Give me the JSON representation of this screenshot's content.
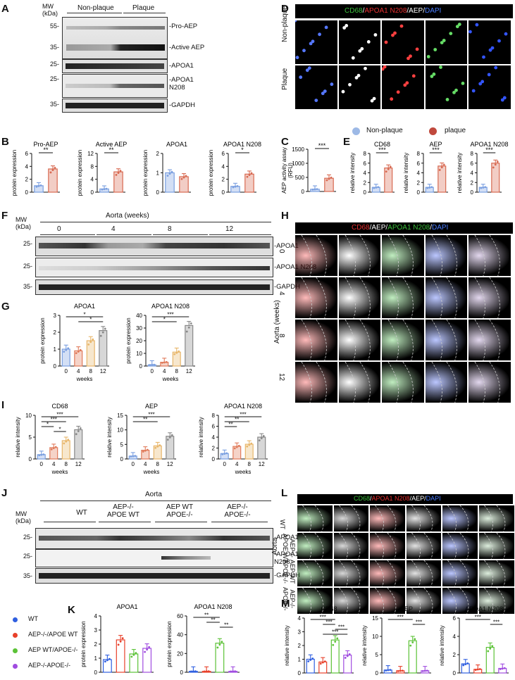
{
  "panels": {
    "A": "A",
    "B": "B",
    "C": "C",
    "D": "D",
    "E": "E",
    "F": "F",
    "G": "G",
    "H": "H",
    "I": "I",
    "J": "J",
    "K": "K",
    "L": "L",
    "M": "M"
  },
  "mw_label": "MW\n(kDa)",
  "panel_A": {
    "groups": [
      "Non-plaque",
      "Plaque"
    ],
    "mw": [
      "55-",
      "35-",
      "25-",
      "25-",
      "35-"
    ],
    "bands": [
      "-Pro-AEP",
      "-Active AEP",
      "-APOA1",
      "-APOA1\nN208",
      "-GAPDH"
    ]
  },
  "panel_D": {
    "stain": [
      {
        "text": "CD68",
        "color": "#3cbf3c"
      },
      {
        "text": "/",
        "color": "#ffffff"
      },
      {
        "text": "APOA1 N208",
        "color": "#e83030"
      },
      {
        "text": "/AEP/",
        "color": "#ffffff"
      },
      {
        "text": "DAPI",
        "color": "#4a7dff"
      }
    ],
    "rows": [
      "Non-plaque",
      "Plaque"
    ]
  },
  "panel_B": {
    "y_label": "protein expression",
    "charts": [
      {
        "title": "Pro-AEP",
        "ylim": [
          0,
          6
        ],
        "ticks": [
          "0",
          "2",
          "4",
          "6"
        ],
        "values": [
          1.0,
          3.6
        ],
        "sig": "**"
      },
      {
        "title": "Active AEP",
        "ylim": [
          0,
          12
        ],
        "ticks": [
          "0",
          "4",
          "8",
          "12"
        ],
        "values": [
          1.0,
          6.3
        ],
        "sig": "**"
      },
      {
        "title": "APOA1",
        "ylim": [
          0,
          2
        ],
        "ticks": [
          "0",
          "1",
          "2"
        ],
        "values": [
          1.0,
          0.8
        ],
        "sig": ""
      },
      {
        "title": "APOA1 N208",
        "ylim": [
          0,
          6
        ],
        "ticks": [
          "0",
          "2",
          "4",
          "6"
        ],
        "values": [
          0.9,
          2.8
        ],
        "sig": "*"
      }
    ]
  },
  "panel_C": {
    "y_label": "AEP activity assay\n(RFU)",
    "ticks": [
      "0",
      "500",
      "1000",
      "1500"
    ],
    "ylim": [
      0,
      1500
    ],
    "values": [
      80,
      470
    ],
    "sig": "***"
  },
  "legend_top": {
    "items": [
      {
        "label": "Non-plaque",
        "color": "#9db9e6"
      },
      {
        "label": "plaque",
        "color": "#c0493d"
      }
    ]
  },
  "panel_E": {
    "y_label": "relative intensity",
    "charts": [
      {
        "title": "CD68",
        "ylim": [
          0,
          8
        ],
        "ticks": [
          "0",
          "2",
          "4",
          "6",
          "8"
        ],
        "values": [
          1.0,
          5.0
        ],
        "sig": "***"
      },
      {
        "title": "AEP",
        "ylim": [
          0,
          8
        ],
        "ticks": [
          "0",
          "2",
          "4",
          "6",
          "8"
        ],
        "values": [
          1.0,
          5.4
        ],
        "sig": "***"
      },
      {
        "title": "APOA1 N208",
        "ylim": [
          0,
          8
        ],
        "ticks": [
          "0",
          "2",
          "4",
          "6",
          "8"
        ],
        "values": [
          1.0,
          6.0
        ],
        "sig": "***"
      }
    ]
  },
  "panel_F": {
    "title": "Aorta (weeks)",
    "groups": [
      "0",
      "4",
      "8",
      "12"
    ],
    "mw": [
      "25-",
      "25-",
      "35-"
    ],
    "bands": [
      "-APOA1",
      "-APOA1 N208",
      "-GAPDH"
    ]
  },
  "panel_H": {
    "stain": [
      {
        "text": "CD68",
        "color": "#e83030"
      },
      {
        "text": "/AEP/",
        "color": "#ffffff"
      },
      {
        "text": "APOA1 N208",
        "color": "#3cbf3c"
      },
      {
        "text": "/",
        "color": "#ffffff"
      },
      {
        "text": "DAPI",
        "color": "#4a7dff"
      }
    ],
    "side_label": "Aorta (weeks)",
    "rows": [
      "0",
      "4",
      "8",
      "12"
    ]
  },
  "panel_G": {
    "y_label": "protein expression",
    "x_label": "weeks",
    "categories": [
      "0",
      "4",
      "8",
      "12"
    ],
    "charts": [
      {
        "title": "APOA1",
        "ylim": [
          0,
          3
        ],
        "ticks": [
          "0",
          "1",
          "2",
          "3"
        ],
        "values": [
          1.0,
          0.9,
          1.5,
          2.1
        ],
        "sig": [
          {
            "a": 0,
            "b": 3,
            "t": "*"
          },
          {
            "a": 1,
            "b": 3,
            "t": "*"
          }
        ]
      },
      {
        "title": "APOA1 N208",
        "ylim": [
          0,
          40
        ],
        "ticks": [
          "0",
          "10",
          "20",
          "30",
          "40"
        ],
        "values": [
          1,
          3,
          11,
          32
        ],
        "sig": [
          {
            "a": 0,
            "b": 3,
            "t": "***"
          },
          {
            "a": 0,
            "b": 2,
            "t": "*"
          }
        ]
      }
    ]
  },
  "panel_I": {
    "y_label": "relative intensity",
    "x_label": "weeks",
    "categories": [
      "0",
      "4",
      "8",
      "12"
    ],
    "charts": [
      {
        "title": "CD68",
        "ylim": [
          0,
          10
        ],
        "ticks": [
          "0",
          "5",
          "10"
        ],
        "values": [
          1.0,
          2.6,
          4.2,
          6.7
        ],
        "sig": [
          {
            "a": 0,
            "b": 3,
            "t": "***"
          },
          {
            "a": 0,
            "b": 2,
            "t": "***"
          },
          {
            "a": 0,
            "b": 1,
            "t": "*"
          },
          {
            "a": 1,
            "b": 2,
            "t": "*"
          }
        ]
      },
      {
        "title": "AEP",
        "ylim": [
          0,
          15
        ],
        "ticks": [
          "0",
          "5",
          "10",
          "15"
        ],
        "values": [
          1.0,
          3.0,
          4.5,
          7.8
        ],
        "sig": [
          {
            "a": 0,
            "b": 3,
            "t": "***"
          },
          {
            "a": 0,
            "b": 2,
            "t": "**"
          }
        ]
      },
      {
        "title": "APOA1 N208",
        "ylim": [
          0,
          8
        ],
        "ticks": [
          "0",
          "2",
          "4",
          "6",
          "8"
        ],
        "values": [
          1.0,
          2.3,
          2.7,
          4.0
        ],
        "sig": [
          {
            "a": 0,
            "b": 3,
            "t": "***"
          },
          {
            "a": 0,
            "b": 2,
            "t": "**"
          },
          {
            "a": 0,
            "b": 1,
            "t": "**"
          }
        ]
      }
    ]
  },
  "panel_J": {
    "title": "Aorta",
    "groups": [
      "WT",
      "AEP-/-\nAPOE WT",
      "AEP WT\nAPOE-/-",
      "AEP-/-\nAPOE-/-"
    ],
    "mw": [
      "25-",
      "25-",
      "35-"
    ],
    "bands": [
      "-APOA1",
      "-APOA1\nN208",
      "-GAPDH"
    ]
  },
  "panel_L": {
    "stain": [
      {
        "text": "CD68",
        "color": "#3cbf3c"
      },
      {
        "text": "/",
        "color": "#ffffff"
      },
      {
        "text": "APOA1 N208",
        "color": "#e83030"
      },
      {
        "text": "/AEP/",
        "color": "#ffffff"
      },
      {
        "text": "DAPI",
        "color": "#4a7dff"
      }
    ],
    "side_label": "Aorta",
    "rows": [
      "WT",
      "AEP-/-\nAPOE WT",
      "AEP WT\nAPOE-/-",
      "AEP-/-\nAPOE-/-"
    ]
  },
  "legend_bottom": {
    "items": [
      {
        "label": "WT",
        "color": "#2f5fe0"
      },
      {
        "label": "AEP-/-/APOE WT",
        "color": "#e8402a"
      },
      {
        "label": "AEP WT/APOE-/-",
        "color": "#5bc236"
      },
      {
        "label": "AEP-/-APOE-/-",
        "color": "#a04ce0"
      }
    ]
  },
  "panel_K": {
    "y_label": "protein expression",
    "charts": [
      {
        "title": "APOA1",
        "ylim": [
          0,
          4
        ],
        "ticks": [
          "0",
          "1",
          "2",
          "3",
          "4"
        ],
        "values": [
          0.9,
          2.3,
          1.3,
          1.7
        ],
        "sig": []
      },
      {
        "title": "APOA1 N208",
        "ylim": [
          0,
          60
        ],
        "ticks": [
          "0",
          "20",
          "40",
          "60"
        ],
        "values": [
          1,
          1,
          31,
          1
        ],
        "sig": [
          {
            "a": 0,
            "b": 2,
            "t": "**"
          },
          {
            "a": 1,
            "b": 2,
            "t": "**"
          },
          {
            "a": 2,
            "b": 3,
            "t": "**"
          }
        ]
      }
    ]
  },
  "panel_M": {
    "y_label": "relative intensity",
    "charts": [
      {
        "title": "CD68",
        "ylim": [
          0,
          4
        ],
        "ticks": [
          "0",
          "1",
          "2",
          "3",
          "4"
        ],
        "values": [
          1.0,
          0.8,
          2.4,
          1.3
        ],
        "sig": [
          {
            "a": 0,
            "b": 2,
            "t": "***"
          },
          {
            "a": 1,
            "b": 2,
            "t": "***"
          },
          {
            "a": 2,
            "b": 3,
            "t": "***"
          },
          {
            "a": 1,
            "b": 3,
            "t": "***"
          }
        ]
      },
      {
        "title": "AEP",
        "ylim": [
          0,
          15
        ],
        "ticks": [
          "0",
          "5",
          "10",
          "15"
        ],
        "values": [
          0.8,
          0.6,
          8.8,
          0.6
        ],
        "sig": [
          {
            "a": 0,
            "b": 2,
            "t": "***"
          },
          {
            "a": 2,
            "b": 3,
            "t": "***"
          }
        ]
      },
      {
        "title": "APOA1 N208",
        "ylim": [
          0,
          6
        ],
        "ticks": [
          "0",
          "2",
          "4",
          "6"
        ],
        "values": [
          1.0,
          0.4,
          2.8,
          0.5
        ],
        "sig": [
          {
            "a": 0,
            "b": 2,
            "t": "***"
          },
          {
            "a": 2,
            "b": 3,
            "t": "***"
          }
        ]
      }
    ]
  },
  "chart_data": [
    {
      "type": "bar",
      "panel": "B",
      "title": "Pro-AEP",
      "categories": [
        "Non-plaque",
        "Plaque"
      ],
      "values": [
        1.0,
        3.6
      ],
      "ylabel": "protein expression",
      "ylim": [
        0,
        6
      ]
    },
    {
      "type": "bar",
      "panel": "B",
      "title": "Active AEP",
      "categories": [
        "Non-plaque",
        "Plaque"
      ],
      "values": [
        1.0,
        6.3
      ],
      "ylabel": "protein expression",
      "ylim": [
        0,
        12
      ]
    },
    {
      "type": "bar",
      "panel": "B",
      "title": "APOA1",
      "categories": [
        "Non-plaque",
        "Plaque"
      ],
      "values": [
        1.0,
        0.8
      ],
      "ylabel": "protein expression",
      "ylim": [
        0,
        2
      ]
    },
    {
      "type": "bar",
      "panel": "B",
      "title": "APOA1 N208",
      "categories": [
        "Non-plaque",
        "Plaque"
      ],
      "values": [
        0.9,
        2.8
      ],
      "ylabel": "protein expression",
      "ylim": [
        0,
        6
      ]
    },
    {
      "type": "bar",
      "panel": "C",
      "categories": [
        "Non-plaque",
        "plaque"
      ],
      "values": [
        80,
        470
      ],
      "ylabel": "AEP activity assay (RFU)",
      "ylim": [
        0,
        1500
      ]
    },
    {
      "type": "bar",
      "panel": "E",
      "title": "CD68",
      "categories": [
        "Non-plaque",
        "plaque"
      ],
      "values": [
        1.0,
        5.0
      ],
      "ylabel": "relative intensity",
      "ylim": [
        0,
        8
      ]
    },
    {
      "type": "bar",
      "panel": "E",
      "title": "AEP",
      "categories": [
        "Non-plaque",
        "plaque"
      ],
      "values": [
        1.0,
        5.4
      ],
      "ylabel": "relative intensity",
      "ylim": [
        0,
        8
      ]
    },
    {
      "type": "bar",
      "panel": "E",
      "title": "APOA1 N208",
      "categories": [
        "Non-plaque",
        "plaque"
      ],
      "values": [
        1.0,
        6.0
      ],
      "ylabel": "relative intensity",
      "ylim": [
        0,
        8
      ]
    },
    {
      "type": "bar",
      "panel": "G",
      "title": "APOA1",
      "categories": [
        "0",
        "4",
        "8",
        "12"
      ],
      "values": [
        1.0,
        0.9,
        1.5,
        2.1
      ],
      "xlabel": "weeks",
      "ylabel": "protein expression",
      "ylim": [
        0,
        3
      ]
    },
    {
      "type": "bar",
      "panel": "G",
      "title": "APOA1 N208",
      "categories": [
        "0",
        "4",
        "8",
        "12"
      ],
      "values": [
        1,
        3,
        11,
        32
      ],
      "xlabel": "weeks",
      "ylabel": "protein expression",
      "ylim": [
        0,
        40
      ]
    },
    {
      "type": "bar",
      "panel": "I",
      "title": "CD68",
      "categories": [
        "0",
        "4",
        "8",
        "12"
      ],
      "values": [
        1.0,
        2.6,
        4.2,
        6.7
      ],
      "xlabel": "weeks",
      "ylabel": "relative intensity",
      "ylim": [
        0,
        10
      ]
    },
    {
      "type": "bar",
      "panel": "I",
      "title": "AEP",
      "categories": [
        "0",
        "4",
        "8",
        "12"
      ],
      "values": [
        1.0,
        3.0,
        4.5,
        7.8
      ],
      "xlabel": "weeks",
      "ylabel": "relative intensity",
      "ylim": [
        0,
        15
      ]
    },
    {
      "type": "bar",
      "panel": "I",
      "title": "APOA1 N208",
      "categories": [
        "0",
        "4",
        "8",
        "12"
      ],
      "values": [
        1.0,
        2.3,
        2.7,
        4.0
      ],
      "xlabel": "weeks",
      "ylabel": "relative intensity",
      "ylim": [
        0,
        8
      ]
    },
    {
      "type": "bar",
      "panel": "K",
      "title": "APOA1",
      "categories": [
        "WT",
        "AEP-/-/APOE WT",
        "AEP WT/APOE-/-",
        "AEP-/-APOE-/-"
      ],
      "values": [
        0.9,
        2.3,
        1.3,
        1.7
      ],
      "ylabel": "protein expression",
      "ylim": [
        0,
        4
      ]
    },
    {
      "type": "bar",
      "panel": "K",
      "title": "APOA1 N208",
      "categories": [
        "WT",
        "AEP-/-/APOE WT",
        "AEP WT/APOE-/-",
        "AEP-/-APOE-/-"
      ],
      "values": [
        1,
        1,
        31,
        1
      ],
      "ylabel": "protein expression",
      "ylim": [
        0,
        60
      ]
    },
    {
      "type": "bar",
      "panel": "M",
      "title": "CD68",
      "categories": [
        "WT",
        "AEP-/-/APOE WT",
        "AEP WT/APOE-/-",
        "AEP-/-APOE-/-"
      ],
      "values": [
        1.0,
        0.8,
        2.4,
        1.3
      ],
      "ylabel": "relative intensity",
      "ylim": [
        0,
        4
      ]
    },
    {
      "type": "bar",
      "panel": "M",
      "title": "AEP",
      "categories": [
        "WT",
        "AEP-/-/APOE WT",
        "AEP WT/APOE-/-",
        "AEP-/-APOE-/-"
      ],
      "values": [
        0.8,
        0.6,
        8.8,
        0.6
      ],
      "ylabel": "relative intensity",
      "ylim": [
        0,
        15
      ]
    },
    {
      "type": "bar",
      "panel": "M",
      "title": "APOA1 N208",
      "categories": [
        "WT",
        "AEP-/-/APOE WT",
        "AEP WT/APOE-/-",
        "AEP-/-APOE-/-"
      ],
      "values": [
        1.0,
        0.4,
        2.8,
        0.5
      ],
      "ylabel": "relative intensity",
      "ylim": [
        0,
        6
      ]
    }
  ]
}
